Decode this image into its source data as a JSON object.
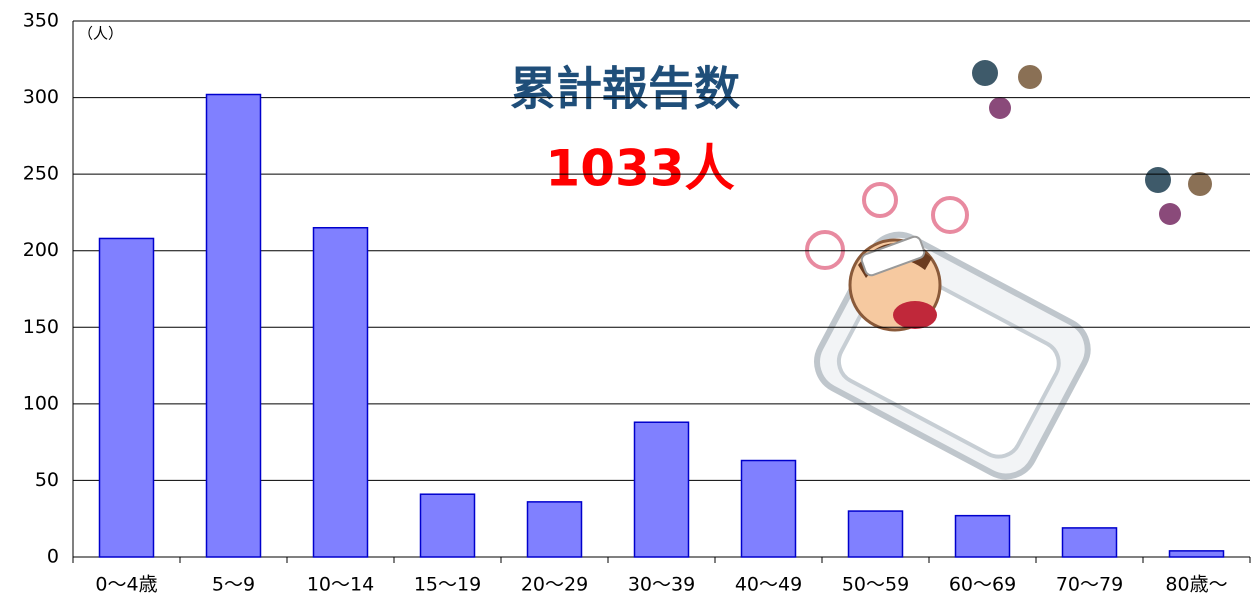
{
  "chart_data": {
    "type": "bar",
    "title": "累計報告数",
    "annotation": "1033人",
    "y_unit_label": "（人）",
    "categories": [
      "0～4歳",
      "5～9",
      "10～14",
      "15～19",
      "20～29",
      "30～39",
      "40～49",
      "50～59",
      "60～69",
      "70～79",
      "80歳～"
    ],
    "values": [
      208,
      302,
      215,
      41,
      36,
      88,
      63,
      30,
      27,
      19,
      4
    ],
    "color": "#8080ff",
    "edge_color": "#0000cc",
    "ylim": [
      0,
      350
    ],
    "yticks": [
      0,
      50,
      100,
      150,
      200,
      250,
      300,
      350
    ],
    "grid": true
  }
}
